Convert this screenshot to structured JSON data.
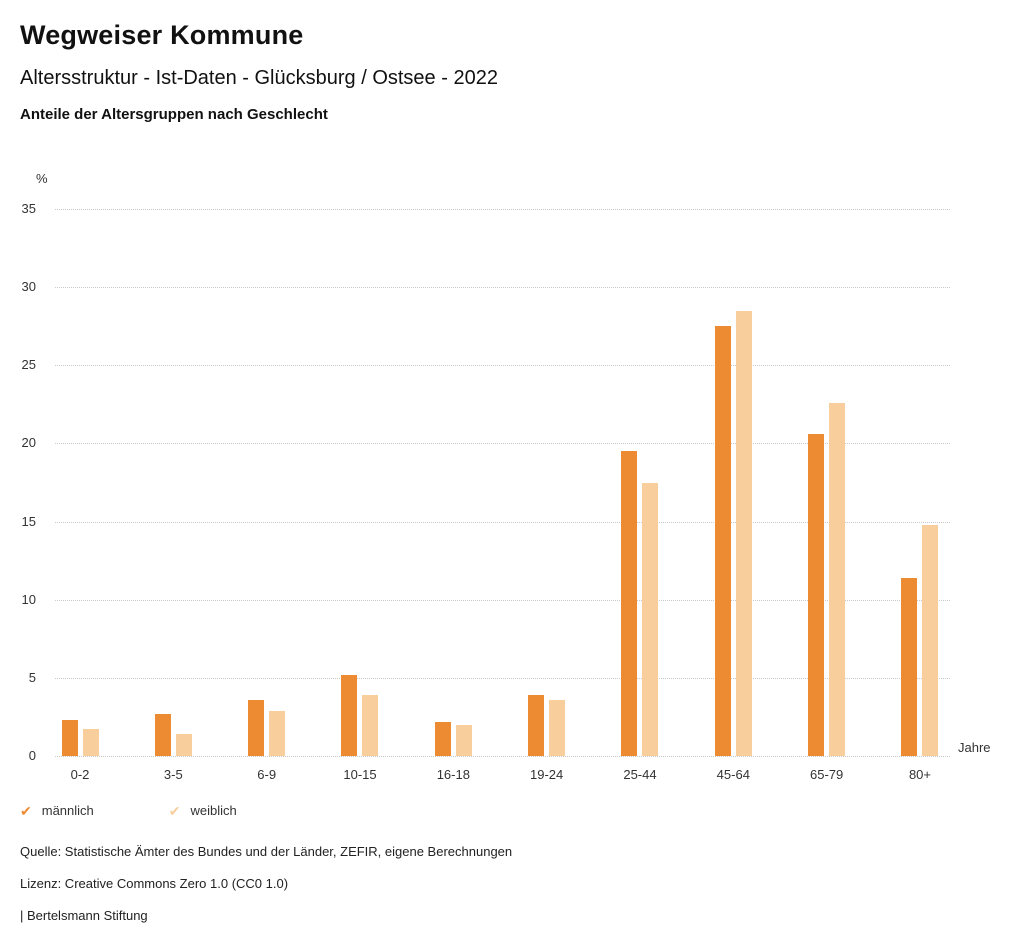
{
  "header": {
    "title": "Wegweiser Kommune",
    "subtitle": "Altersstruktur - Ist-Daten - Glücksburg / Ostsee - 2022",
    "caption": "Anteile der Altersgruppen nach Geschlecht"
  },
  "chart_data": {
    "type": "bar",
    "title": "Anteile der Altersgruppen nach Geschlecht",
    "unit_label": "%",
    "x_axis_unit": "Jahre",
    "categories": [
      "0-2",
      "3-5",
      "6-9",
      "10-15",
      "16-18",
      "19-24",
      "25-44",
      "45-64",
      "65-79",
      "80+"
    ],
    "series": [
      {
        "name": "männlich",
        "color": "#ED8B33",
        "values": [
          2.3,
          2.7,
          3.6,
          5.2,
          2.2,
          3.9,
          19.5,
          27.5,
          20.6,
          11.4
        ]
      },
      {
        "name": "weiblich",
        "color": "#F8CE9D",
        "values": [
          1.7,
          1.4,
          2.9,
          3.9,
          2.0,
          3.6,
          17.5,
          28.5,
          22.6,
          14.8
        ]
      }
    ],
    "ylim": [
      0,
      35
    ],
    "yticks": [
      0,
      5,
      10,
      15,
      20,
      25,
      30,
      35
    ],
    "grid": "dotted horizontal",
    "legend_position": "bottom-left"
  },
  "legend": {
    "items": [
      {
        "label": "männlich",
        "color": "#ED8B33",
        "marker": "check"
      },
      {
        "label": "weiblich",
        "color": "#F8CE9D",
        "marker": "check"
      }
    ]
  },
  "footer": {
    "source": "Quelle: Statistische Ämter des Bundes und der Länder, ZEFIR, eigene Berechnungen",
    "license": "Lizenz: Creative Commons Zero 1.0 (CC0 1.0)",
    "attribution": "| Bertelsmann Stiftung"
  }
}
